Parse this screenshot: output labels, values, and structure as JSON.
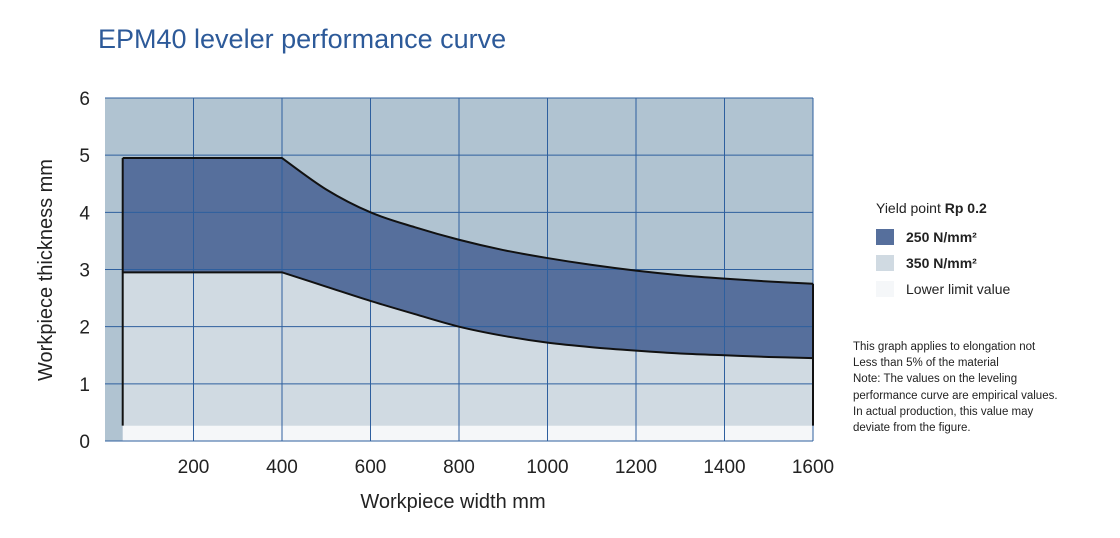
{
  "title": "EPM40 leveler performance curve",
  "colors": {
    "background_region": "#b0c3d1",
    "band_250": "#566f9c",
    "band_350": "#d0dae2",
    "lower_limit": "#f5f7f9",
    "grid": "#2e5f9e",
    "curve": "#111111"
  },
  "chart_data": {
    "type": "area",
    "xlabel": "Workpiece width mm",
    "ylabel": "Workpiece thickness mm",
    "xlim": [
      0,
      1600
    ],
    "ylim": [
      0,
      6
    ],
    "x_ticks": [
      "200",
      "400",
      "600",
      "800",
      "1000",
      "1200",
      "1400",
      "1600"
    ],
    "x_tick_values": [
      200,
      400,
      600,
      800,
      1000,
      1200,
      1400,
      1600
    ],
    "y_ticks": [
      "0",
      "1",
      "2",
      "3",
      "4",
      "5",
      "6"
    ],
    "y_tick_values": [
      0,
      1,
      2,
      3,
      4,
      5,
      6
    ],
    "x_start": 40,
    "lower_limit_thickness": 0.27,
    "series": [
      {
        "name": "250 N/mm²",
        "x": [
          40,
          400,
          500,
          600,
          700,
          800,
          900,
          1000,
          1100,
          1200,
          1300,
          1400,
          1500,
          1600
        ],
        "values": [
          4.95,
          4.95,
          4.4,
          4.0,
          3.74,
          3.52,
          3.34,
          3.2,
          3.08,
          2.98,
          2.9,
          2.84,
          2.79,
          2.75
        ]
      },
      {
        "name": "350 N/mm²",
        "x": [
          40,
          400,
          500,
          600,
          700,
          800,
          900,
          1000,
          1100,
          1200,
          1300,
          1400,
          1500,
          1600
        ],
        "values": [
          2.95,
          2.95,
          2.7,
          2.45,
          2.22,
          2.0,
          1.84,
          1.72,
          1.64,
          1.58,
          1.53,
          1.5,
          1.47,
          1.45
        ]
      }
    ],
    "grid": true,
    "legend_position": "right"
  },
  "legend": {
    "title_prefix": "Yield point",
    "title_bold": "Rp 0.2",
    "items": [
      {
        "label": "250 N/mm²",
        "color": "#566f9c",
        "bold": true
      },
      {
        "label": "350 N/mm²",
        "color": "#d0dae2",
        "bold": true
      },
      {
        "label": "Lower limit value",
        "color": "#f5f7f9",
        "bold": false
      }
    ]
  },
  "note_lines": [
    "This graph applies to elongation not",
    "Less than 5% of the material",
    "Note: The values on the leveling",
    "performance curve are empirical values.",
    "In actual production, this value may",
    "deviate from the figure."
  ]
}
